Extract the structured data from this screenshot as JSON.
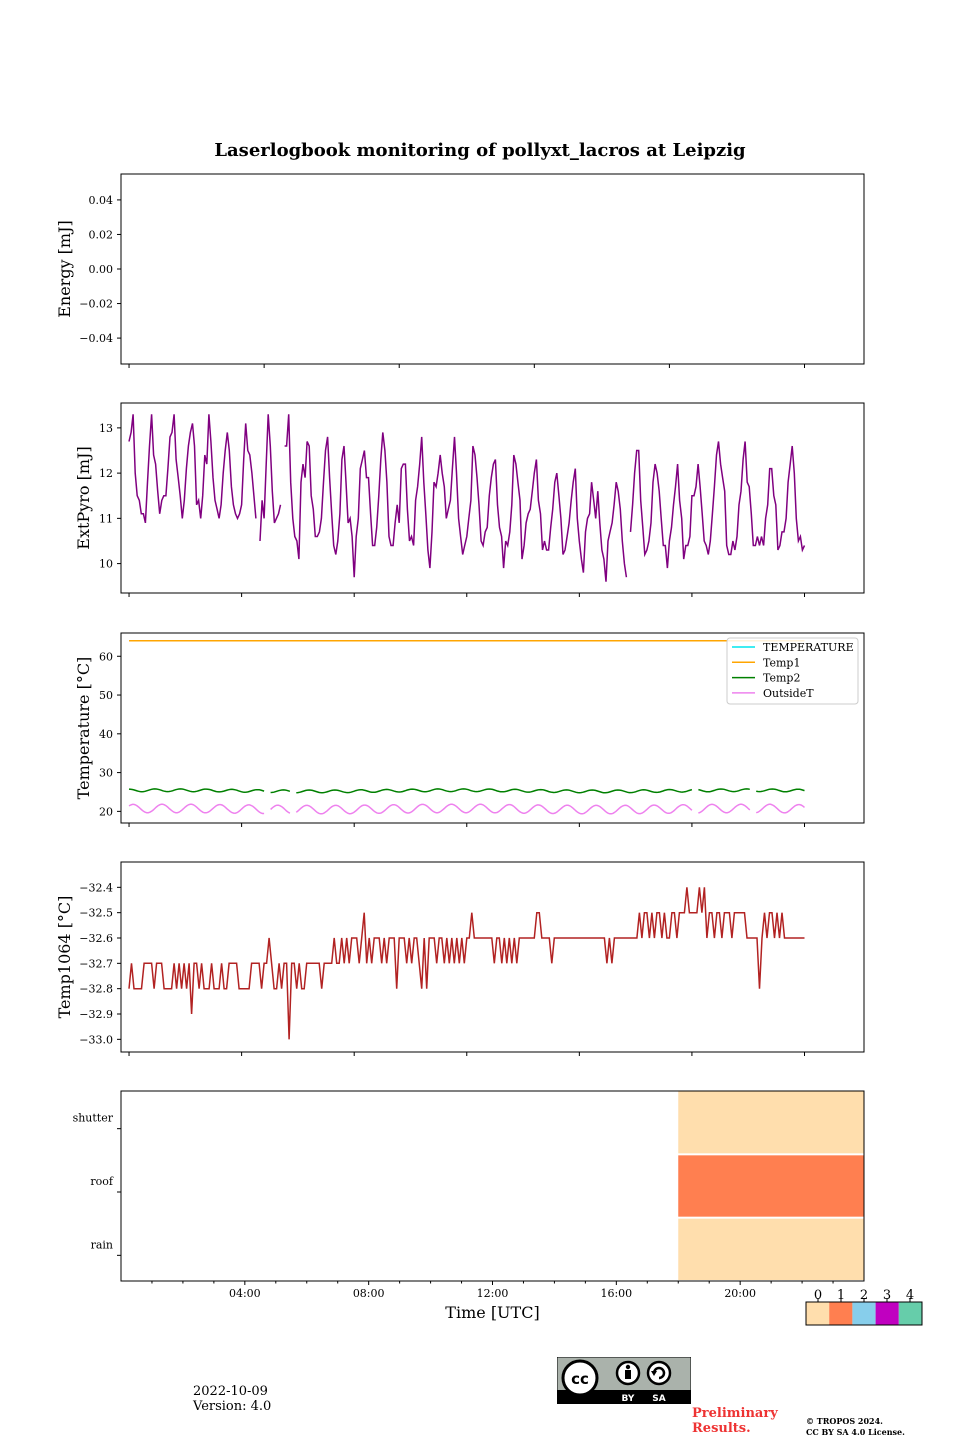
{
  "title": "Laserlogbook monitoring of pollyxt_lacros at Leipzig",
  "footer": {
    "date": "2022-10-09",
    "version": "Version: 4.0",
    "preliminary": "Preliminary Results.",
    "copyright_line1": "© TROPOS 2024.",
    "copyright_line2": "CC BY SA 4.0 License.",
    "license_badge": {
      "symbol": "cc",
      "labels": [
        "BY",
        "SA"
      ]
    }
  },
  "chart_data": [
    {
      "type": "line",
      "ylabel": "Energy [mJ]",
      "ylim": [
        -0.055,
        0.055
      ],
      "yticks": [
        0.04,
        0.02,
        0.0,
        -0.02,
        -0.04
      ],
      "ytick_labels": [
        "0.04",
        "0.02",
        "0.00",
        "−0.02",
        "−0.04"
      ],
      "xlim": [
        0.75,
        23.85
      ],
      "xticks_minor": [
        1,
        5.2,
        9.4,
        13.6,
        17.8,
        22
      ],
      "series": []
    },
    {
      "type": "line",
      "ylabel": "ExtPyro [mJ]",
      "ylim": [
        9.35,
        13.55
      ],
      "yticks": [
        10,
        11,
        12,
        13
      ],
      "ytick_labels": [
        "10",
        "11",
        "12",
        "13"
      ],
      "xlim": [
        0.75,
        23.85
      ],
      "xticks_minor": [
        1,
        4.5,
        8,
        11.5,
        15,
        18.5,
        22
      ],
      "series": [
        {
          "color": "#800080",
          "x_start": 1.0,
          "x_end": 22.0,
          "values": [
            12.7,
            12.9,
            13.3,
            12.0,
            11.5,
            11.4,
            11.1,
            11.1,
            10.9,
            11.8,
            12.6,
            13.3,
            12.4,
            12.2,
            11.6,
            11.1,
            11.4,
            11.5,
            11.5,
            12.1,
            12.8,
            12.9,
            13.3,
            12.3,
            11.9,
            11.5,
            11.0,
            11.4,
            12.1,
            12.6,
            12.9,
            13.1,
            12.6,
            11.3,
            11.4,
            11.0,
            11.5,
            12.4,
            12.2,
            13.3,
            12.7,
            11.9,
            11.4,
            11.2,
            11.0,
            11.3,
            12.0,
            12.5,
            12.9,
            12.5,
            11.7,
            11.3,
            11.1,
            11.0,
            11.1,
            11.3,
            12.3,
            13.1,
            12.5,
            12.4,
            12.0,
            11.5,
            11.0,
            null,
            10.5,
            11.4,
            11.0,
            12.2,
            13.3,
            12.6,
            11.6,
            10.9,
            11.0,
            11.1,
            11.3,
            null,
            12.6,
            12.6,
            13.3,
            11.8,
            11.0,
            10.6,
            10.5,
            10.1,
            11.8,
            12.2,
            11.9,
            12.7,
            12.6,
            11.5,
            11.2,
            10.6,
            10.6,
            10.7,
            11.0,
            11.8,
            12.5,
            12.8,
            11.9,
            11.1,
            10.4,
            10.2,
            10.5,
            11.1,
            12.3,
            12.6,
            11.8,
            10.9,
            11.0,
            10.6,
            9.7,
            10.6,
            11.0,
            12.1,
            12.3,
            12.5,
            11.9,
            11.9,
            11.1,
            10.4,
            10.4,
            10.8,
            11.5,
            12.3,
            12.9,
            12.5,
            11.8,
            10.6,
            10.4,
            10.4,
            10.9,
            11.3,
            10.9,
            12.1,
            12.2,
            12.2,
            11.2,
            10.5,
            10.6,
            10.4,
            11.4,
            11.7,
            12.2,
            12.8,
            11.8,
            11.1,
            10.3,
            9.9,
            10.7,
            11.8,
            11.7,
            12.0,
            12.4,
            12.0,
            11.7,
            11.0,
            11.2,
            11.4,
            12.1,
            12.8,
            12.0,
            11.0,
            10.6,
            10.2,
            10.4,
            10.6,
            11.0,
            11.4,
            12.6,
            12.4,
            11.9,
            11.3,
            10.5,
            10.4,
            10.7,
            10.8,
            11.5,
            11.9,
            12.2,
            12.3,
            11.3,
            10.8,
            10.6,
            9.9,
            10.5,
            10.4,
            10.7,
            11.3,
            12.4,
            12.2,
            11.8,
            11.4,
            10.1,
            10.4,
            10.9,
            11.1,
            11.2,
            11.6,
            12.0,
            12.3,
            11.4,
            11.1,
            10.3,
            10.5,
            10.3,
            10.3,
            10.8,
            11.2,
            11.8,
            12.0,
            11.5,
            11.0,
            10.2,
            10.3,
            10.6,
            10.9,
            11.4,
            11.8,
            12.1,
            11.0,
            10.5,
            10.1,
            9.8,
            10.7,
            11.0,
            11.1,
            11.8,
            11.4,
            11.0,
            11.6,
            10.9,
            10.3,
            10.1,
            9.6,
            10.5,
            10.7,
            10.9,
            11.3,
            11.8,
            11.6,
            11.2,
            10.5,
            10.0,
            9.7,
            null,
            10.7,
            11.3,
            12.0,
            12.5,
            12.5,
            11.4,
            10.8,
            10.2,
            10.3,
            10.5,
            10.9,
            11.8,
            12.2,
            12.0,
            11.6,
            11.0,
            10.4,
            10.4,
            9.9,
            10.5,
            10.8,
            11.3,
            11.7,
            12.2,
            11.4,
            11.0,
            10.1,
            10.4,
            10.4,
            10.6,
            11.5,
            11.5,
            11.7,
            12.2,
            11.7,
            11.1,
            10.5,
            10.4,
            10.2,
            10.5,
            11.1,
            11.7,
            12.4,
            12.7,
            12.2,
            11.9,
            11.6,
            10.4,
            10.2,
            10.2,
            10.5,
            10.3,
            10.6,
            11.3,
            11.6,
            12.3,
            12.7,
            11.8,
            11.7,
            11.1,
            10.4,
            10.4,
            10.6,
            10.4,
            10.6,
            10.4,
            11.0,
            11.3,
            12.1,
            12.1,
            11.5,
            11.3,
            10.3,
            10.4,
            10.7,
            10.7,
            11.0,
            11.8,
            12.2,
            12.6,
            12.0,
            11.0,
            10.5,
            10.6,
            10.3,
            10.4
          ]
        }
      ]
    },
    {
      "type": "line",
      "ylabel": "Temperature [°C]",
      "ylim": [
        17,
        66
      ],
      "yticks": [
        20,
        30,
        40,
        50,
        60
      ],
      "ytick_labels": [
        "20",
        "30",
        "40",
        "50",
        "60"
      ],
      "xlim": [
        0.75,
        23.85
      ],
      "xticks_minor": [
        1,
        4.5,
        8,
        11.5,
        15,
        18.5,
        22
      ],
      "legend": {
        "loc": "upper right",
        "entries": [
          "TEMPERATURE",
          "Temp1",
          "Temp2",
          "OutsideT"
        ]
      },
      "series": [
        {
          "name": "TEMPERATURE",
          "color": "#00e5ee",
          "x": [],
          "y": []
        },
        {
          "name": "Temp1",
          "color": "#ffa500",
          "x": [
            1,
            22
          ],
          "y": [
            64,
            64
          ]
        },
        {
          "name": "Temp2",
          "color": "#008000",
          "x_start": 1.0,
          "x_end": 22.0,
          "base": 25.3,
          "amp": 0.35,
          "period": 0.8,
          "gap_at": [
            5.3,
            6.1,
            18.6,
            20.4
          ]
        },
        {
          "name": "OutsideT",
          "color": "#ee82ee",
          "x_start": 1.0,
          "x_end": 22.0,
          "base": 20.6,
          "amp": 1.1,
          "period": 0.9,
          "gap_at": [
            5.3,
            6.1,
            18.6,
            20.4
          ]
        }
      ]
    },
    {
      "type": "line",
      "ylabel": "Temp1064 [°C]",
      "ylim": [
        -33.05,
        -32.3
      ],
      "yticks": [
        -32.4,
        -32.5,
        -32.6,
        -32.7,
        -32.8,
        -32.9,
        -33.0
      ],
      "ytick_labels": [
        "−32.4",
        "−32.5",
        "−32.6",
        "−32.7",
        "−32.8",
        "−32.9",
        "−33.0"
      ],
      "xlim": [
        0.75,
        23.85
      ],
      "xticks_minor": [
        1,
        4.5,
        8,
        11.5,
        15,
        18.5,
        22
      ],
      "series": [
        {
          "color": "#b22222",
          "x_start": 1.0,
          "x_end": 22.0,
          "values": [
            -32.8,
            -32.7,
            -32.8,
            -32.8,
            -32.8,
            -32.8,
            -32.7,
            -32.7,
            -32.7,
            -32.7,
            -32.8,
            -32.7,
            -32.7,
            -32.7,
            -32.8,
            -32.8,
            -32.8,
            -32.8,
            -32.7,
            -32.8,
            -32.7,
            -32.8,
            -32.7,
            -32.8,
            -32.7,
            -32.9,
            -32.7,
            -32.7,
            -32.8,
            -32.7,
            -32.8,
            -32.8,
            -32.8,
            -32.7,
            -32.8,
            -32.8,
            -32.8,
            -32.7,
            -32.8,
            -32.8,
            -32.7,
            -32.7,
            -32.7,
            -32.7,
            -32.8,
            -32.8,
            -32.8,
            -32.8,
            -32.8,
            -32.7,
            -32.7,
            -32.7,
            -32.7,
            -32.8,
            -32.7,
            -32.7,
            -32.6,
            -32.7,
            -32.8,
            -32.8,
            -32.7,
            -32.8,
            -32.7,
            -32.7,
            -33.0,
            -32.7,
            -32.7,
            -32.8,
            -32.7,
            -32.8,
            -32.8,
            -32.7,
            -32.7,
            -32.7,
            -32.7,
            -32.7,
            -32.7,
            -32.8,
            -32.7,
            -32.7,
            -32.7,
            -32.7,
            -32.6,
            -32.7,
            -32.7,
            -32.6,
            -32.7,
            -32.6,
            -32.7,
            -32.6,
            -32.6,
            -32.6,
            -32.7,
            -32.6,
            -32.5,
            -32.7,
            -32.6,
            -32.7,
            -32.6,
            -32.6,
            -32.6,
            -32.7,
            -32.6,
            -32.7,
            -32.6,
            -32.6,
            -32.6,
            -32.8,
            -32.6,
            -32.6,
            -32.6,
            -32.7,
            -32.6,
            -32.7,
            -32.6,
            -32.6,
            -32.7,
            -32.8,
            -32.6,
            -32.8,
            -32.6,
            -32.6,
            -32.6,
            -32.7,
            -32.6,
            -32.6,
            -32.7,
            -32.6,
            -32.7,
            -32.6,
            -32.7,
            -32.6,
            -32.7,
            -32.6,
            -32.7,
            -32.6,
            -32.6,
            -32.5,
            -32.6,
            -32.6,
            -32.6,
            -32.6,
            -32.6,
            -32.6,
            -32.6,
            -32.6,
            -32.7,
            -32.6,
            -32.6,
            -32.7,
            -32.6,
            -32.7,
            -32.6,
            -32.7,
            -32.6,
            -32.7,
            -32.6,
            -32.6,
            -32.6,
            -32.6,
            -32.6,
            -32.6,
            -32.6,
            -32.5,
            -32.5,
            -32.6,
            -32.6,
            -32.6,
            -32.6,
            -32.7,
            -32.6,
            -32.6,
            -32.6,
            -32.6,
            -32.6,
            -32.6,
            -32.6,
            -32.6,
            -32.6,
            -32.6,
            -32.6,
            -32.6,
            -32.6,
            -32.6,
            -32.6,
            -32.6,
            -32.6,
            -32.6,
            -32.6,
            -32.6,
            -32.6,
            -32.7,
            -32.6,
            -32.7,
            -32.6,
            -32.6,
            -32.6,
            -32.6,
            -32.6,
            -32.6,
            -32.6,
            -32.6,
            -32.6,
            -32.6,
            -32.5,
            -32.6,
            -32.5,
            -32.5,
            -32.6,
            -32.5,
            -32.6,
            -32.5,
            -32.5,
            -32.6,
            -32.5,
            -32.6,
            -32.6,
            -32.5,
            -32.5,
            -32.6,
            -32.5,
            -32.5,
            -32.5,
            -32.4,
            -32.5,
            -32.5,
            -32.5,
            -32.5,
            -32.4,
            -32.5,
            -32.4,
            -32.6,
            -32.5,
            -32.5,
            -32.6,
            -32.5,
            -32.5,
            -32.6,
            -32.5,
            -32.5,
            -32.5,
            -32.6,
            -32.5,
            -32.5,
            -32.5,
            -32.5,
            -32.5,
            -32.6,
            -32.6,
            -32.6,
            -32.6,
            -32.6,
            -32.8,
            -32.6,
            -32.5,
            -32.6,
            -32.5,
            -32.5,
            -32.6,
            -32.5,
            -32.6,
            -32.5,
            -32.6,
            -32.6,
            -32.6,
            -32.6,
            -32.6,
            -32.6,
            -32.6,
            -32.6,
            -32.6
          ]
        }
      ]
    },
    {
      "type": "heatmap",
      "xlabel": "Time [UTC]",
      "xlim": [
        0,
        24
      ],
      "xticks": [
        4,
        8,
        12,
        16,
        20
      ],
      "xtick_labels": [
        "04:00",
        "08:00",
        "12:00",
        "16:00",
        "20:00"
      ],
      "xticks_minor": [
        1,
        2,
        3,
        5,
        6,
        7,
        9,
        10,
        11,
        13,
        14,
        15,
        17,
        18,
        19,
        21,
        22,
        23
      ],
      "rows": [
        "shutter",
        "roof",
        "rain"
      ],
      "segments": [
        {
          "row": "shutter",
          "start": 18.0,
          "end": 24.0,
          "value": 0
        },
        {
          "row": "roof",
          "start": 18.0,
          "end": 24.0,
          "value": 1
        },
        {
          "row": "rain",
          "start": 18.0,
          "end": 24.0,
          "value": 0
        }
      ],
      "colorbar": {
        "ticks": [
          "0",
          "1",
          "2",
          "3",
          "4"
        ],
        "colors": [
          "#ffdead",
          "#ff7f50",
          "#87ceeb",
          "#c000c0",
          "#66cdaa"
        ]
      }
    }
  ]
}
